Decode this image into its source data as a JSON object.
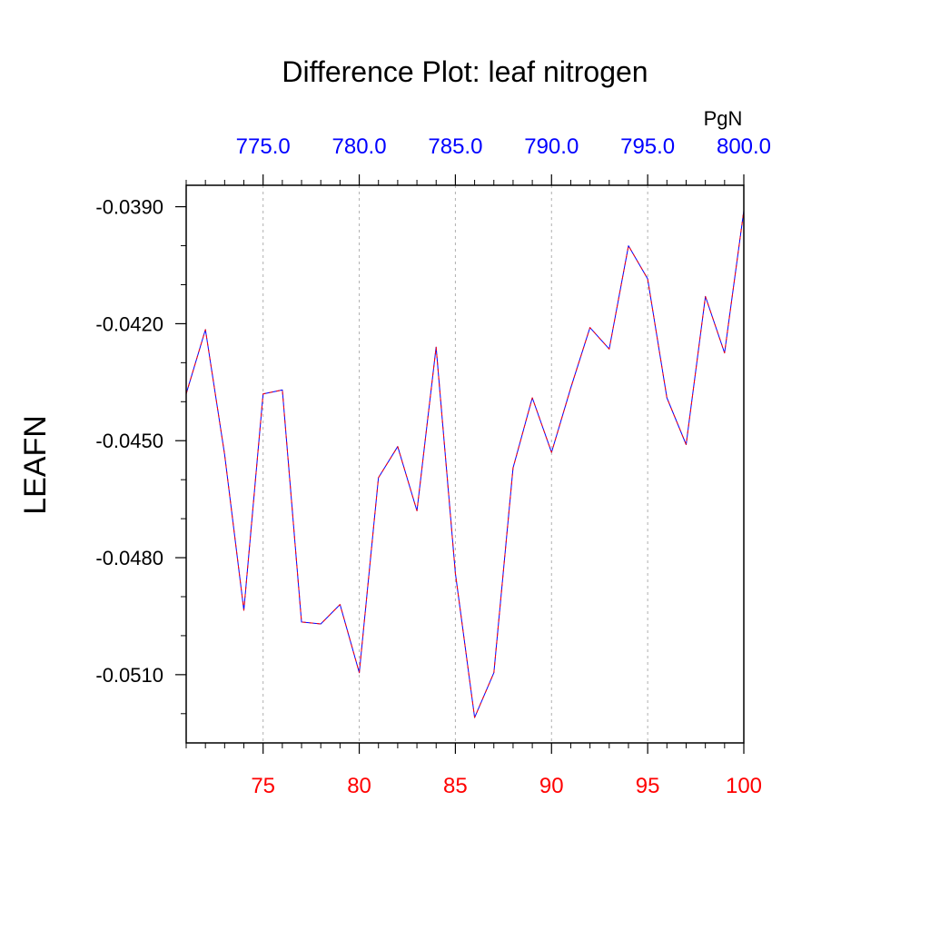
{
  "chart_data": {
    "type": "line",
    "title": "Difference Plot: leaf nitrogen",
    "ylabel": "LEAFN",
    "top_axis_unit": "PgN",
    "xlim": [
      71,
      100
    ],
    "ylim": [
      -0.05275,
      -0.03845
    ],
    "bottom_ticks": [
      75,
      80,
      85,
      90,
      95,
      100
    ],
    "bottom_tick_labels": [
      "75",
      "80",
      "85",
      "90",
      "95",
      "100"
    ],
    "top_tick_labels": [
      "775.0",
      "780.0",
      "785.0",
      "790.0",
      "795.0",
      "800.0"
    ],
    "y_ticks": [
      -0.039,
      -0.042,
      -0.045,
      -0.048,
      -0.051
    ],
    "y_tick_labels": [
      "-0.0390",
      "-0.0420",
      "-0.0450",
      "-0.0480",
      "-0.0510"
    ],
    "grid": "vertical dashed at major x ticks",
    "colors": {
      "bottom_tick_labels": "#ff0000",
      "top_tick_labels": "#0000ff",
      "series_a": "#0000ff",
      "series_b": "#ff0000",
      "grid": "#b0b0b0",
      "axes": "#000000"
    },
    "series": [
      {
        "x": [
          71,
          72,
          73,
          74,
          75,
          76,
          77,
          78,
          79,
          80,
          81,
          82,
          83,
          84,
          85,
          86,
          87,
          88,
          89,
          90,
          91,
          92,
          93,
          94,
          95,
          96,
          97,
          98,
          99,
          100
        ],
        "values": [
          -0.0438,
          -0.04215,
          -0.04535,
          -0.04935,
          -0.0438,
          -0.0437,
          -0.04965,
          -0.0497,
          -0.0492,
          -0.05095,
          -0.04595,
          -0.04515,
          -0.0468,
          -0.0426,
          -0.0484,
          -0.0521,
          -0.05095,
          -0.0457,
          -0.0439,
          -0.0453,
          -0.04365,
          -0.0421,
          -0.04265,
          -0.04,
          -0.04085,
          -0.0439,
          -0.0451,
          -0.0413,
          -0.04275,
          -0.0391
        ]
      },
      {
        "x": [
          71,
          72,
          73,
          74,
          75,
          76,
          77,
          78,
          79,
          80,
          81,
          82,
          83,
          84,
          85,
          86,
          87,
          88,
          89,
          90,
          91,
          92,
          93,
          94,
          95,
          96,
          97,
          98,
          99,
          100
        ],
        "values": [
          -0.0438,
          -0.04215,
          -0.04535,
          -0.04935,
          -0.0438,
          -0.0437,
          -0.04965,
          -0.0497,
          -0.0492,
          -0.05095,
          -0.04595,
          -0.04515,
          -0.0468,
          -0.0426,
          -0.0484,
          -0.0521,
          -0.05095,
          -0.0457,
          -0.0439,
          -0.0453,
          -0.04365,
          -0.0421,
          -0.04265,
          -0.04,
          -0.04085,
          -0.0439,
          -0.0451,
          -0.0413,
          -0.04275,
          -0.0391
        ]
      }
    ]
  }
}
